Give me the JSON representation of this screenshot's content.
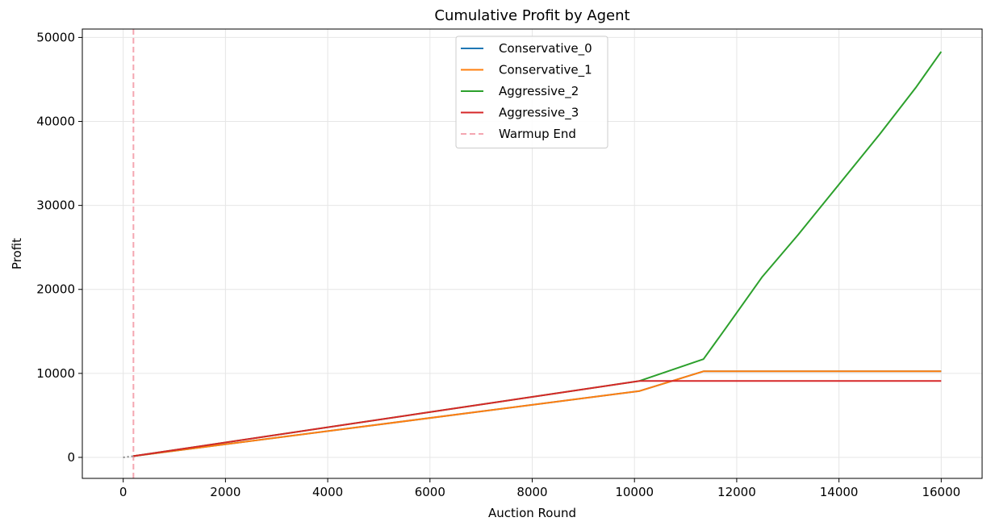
{
  "chart_data": {
    "type": "line",
    "title": "Cumulative Profit by Agent",
    "xlabel": "Auction Round",
    "ylabel": "Profit",
    "xlim": [
      -800,
      16800
    ],
    "ylim": [
      -2500,
      51000
    ],
    "xticks": [
      0,
      2000,
      4000,
      6000,
      8000,
      10000,
      12000,
      14000,
      16000
    ],
    "yticks": [
      0,
      10000,
      20000,
      30000,
      40000,
      50000
    ],
    "grid": true,
    "legend_position": "top-center",
    "series": [
      {
        "name": "Conservative_0",
        "color": "#1f77b4",
        "x": [
          200,
          10100,
          11350,
          16000
        ],
        "y": [
          150,
          7900,
          10250,
          10250
        ]
      },
      {
        "name": "Conservative_1",
        "color": "#ff7f0e",
        "x": [
          200,
          10100,
          11350,
          16000
        ],
        "y": [
          150,
          7900,
          10250,
          10250
        ]
      },
      {
        "name": "Aggressive_2",
        "color": "#2ca02c",
        "x": [
          200,
          10100,
          11350,
          11800,
          12500,
          13200,
          14000,
          14800,
          15500,
          16000
        ],
        "y": [
          150,
          9100,
          11700,
          15500,
          21500,
          26500,
          32500,
          38500,
          44000,
          48300
        ]
      },
      {
        "name": "Aggressive_3",
        "color": "#d62728",
        "x": [
          200,
          10100,
          16000
        ],
        "y": [
          150,
          9100,
          9100
        ]
      }
    ],
    "warmup_line": {
      "name": "Warmup End",
      "x": 200,
      "color": "#f4a6b1"
    },
    "warmup_segment": {
      "x": [
        0,
        200
      ],
      "y": [
        0,
        150
      ],
      "color": "#888888"
    }
  }
}
